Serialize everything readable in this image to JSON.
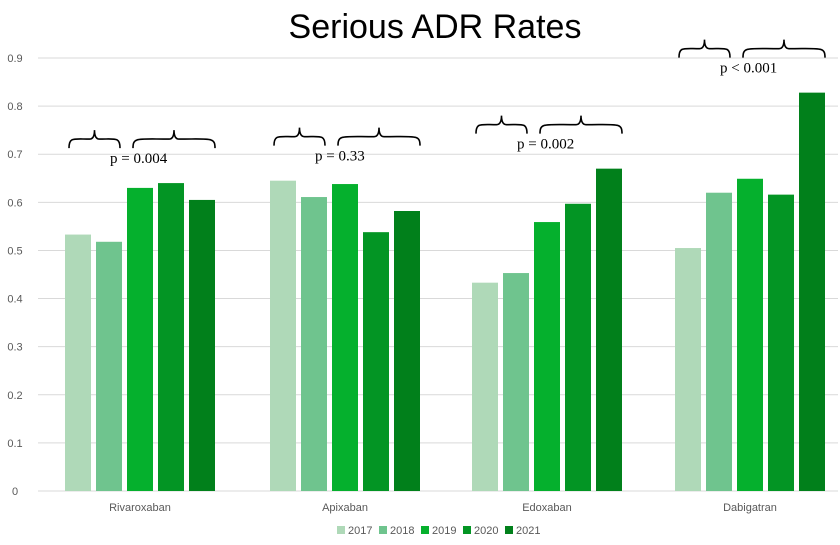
{
  "chart_data": {
    "type": "bar",
    "title": "Serious ADR Rates",
    "xlabel": "",
    "ylabel": "",
    "ylim": [
      0,
      0.9
    ],
    "yticks": [
      "0",
      "0.1",
      "0.2",
      "0.3",
      "0.4",
      "0.5",
      "0.6",
      "0.7",
      "0.8",
      "0.9"
    ],
    "grid": true,
    "legend_position": "bottom",
    "categories": [
      "Rivaroxaban",
      "Apixaban",
      "Edoxaban",
      "Dabigatran"
    ],
    "series": [
      {
        "name": "2017",
        "color": "#afd9b8",
        "values": [
          0.533,
          0.645,
          0.433,
          0.505
        ]
      },
      {
        "name": "2018",
        "color": "#6fc48e",
        "values": [
          0.518,
          0.611,
          0.453,
          0.62
        ]
      },
      {
        "name": "2019",
        "color": "#05b02d",
        "values": [
          0.63,
          0.638,
          0.559,
          0.649
        ]
      },
      {
        "name": "2020",
        "color": "#039524",
        "values": [
          0.64,
          0.538,
          0.597,
          0.616
        ]
      },
      {
        "name": "2021",
        "color": "#01801b",
        "values": [
          0.605,
          0.582,
          0.67,
          0.828
        ]
      }
    ],
    "annotations": [
      {
        "category": "Rivaroxaban",
        "text": "p = 0.004"
      },
      {
        "category": "Apixaban",
        "text": "p = 0.33"
      },
      {
        "category": "Edoxaban",
        "text": "p = 0.002"
      },
      {
        "category": "Dabigatran",
        "text": "p < 0.001"
      }
    ]
  }
}
